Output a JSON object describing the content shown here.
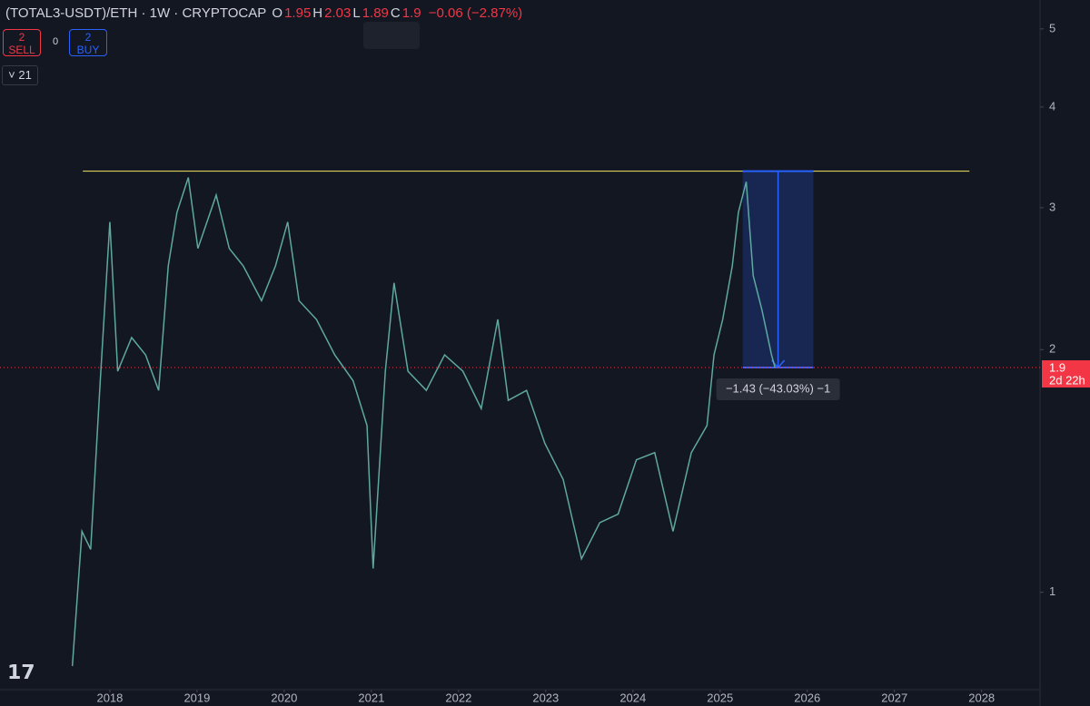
{
  "header": {
    "symbol": "(TOTAL3-USDT)/ETH · 1W · CRYPTOCAP",
    "ohlc": [
      {
        "key": "O",
        "value": "1.95"
      },
      {
        "key": "H",
        "value": "2.03"
      },
      {
        "key": "L",
        "value": "1.89"
      },
      {
        "key": "C",
        "value": "1.9"
      }
    ],
    "change": "−0.06 (−2.87%)"
  },
  "toolbar": {
    "sell_count": "2",
    "sell_label": "SELL",
    "spread": "0",
    "buy_count": "2",
    "buy_label": "BUY",
    "indicator": "21"
  },
  "chart_data": {
    "type": "line",
    "log_scale": true,
    "color": "#5fa8a0",
    "x": [
      2017.57,
      2017.68,
      2017.78,
      2017.89,
      2018.0,
      2018.09,
      2018.25,
      2018.41,
      2018.56,
      2018.67,
      2018.77,
      2018.9,
      2019.01,
      2019.22,
      2019.37,
      2019.53,
      2019.74,
      2019.9,
      2020.04,
      2020.17,
      2020.37,
      2020.58,
      2020.79,
      2020.95,
      2021.02,
      2021.16,
      2021.26,
      2021.42,
      2021.63,
      2021.84,
      2022.05,
      2022.26,
      2022.45,
      2022.57,
      2022.78,
      2022.99,
      2023.2,
      2023.41,
      2023.62,
      2023.83,
      2024.04,
      2024.25,
      2024.46,
      2024.67,
      2024.85,
      2024.93,
      2025.03,
      2025.14,
      2025.21,
      2025.3,
      2025.38,
      2025.48,
      2025.59,
      2025.63
    ],
    "values": [
      0.81,
      1.19,
      1.13,
      1.83,
      2.88,
      1.88,
      2.07,
      1.97,
      1.78,
      2.54,
      2.96,
      3.27,
      2.67,
      3.11,
      2.67,
      2.54,
      2.3,
      2.54,
      2.88,
      2.3,
      2.18,
      1.97,
      1.83,
      1.61,
      1.07,
      1.88,
      2.42,
      1.88,
      1.78,
      1.97,
      1.88,
      1.69,
      2.18,
      1.73,
      1.78,
      1.53,
      1.38,
      1.1,
      1.22,
      1.25,
      1.46,
      1.49,
      1.19,
      1.49,
      1.61,
      1.97,
      2.18,
      2.54,
      2.96,
      3.23,
      2.47,
      2.24,
      1.97,
      1.9
    ],
    "xlim": [
      2016.74,
      2028.67
    ],
    "ylim": [
      0.757,
      5.43
    ],
    "xticks": [
      2018,
      2019,
      2020,
      2021,
      2022,
      2023,
      2024,
      2025,
      2026,
      2027,
      2028
    ],
    "yticks": [
      1,
      2,
      3,
      4,
      5
    ],
    "resistance": {
      "y": 3.33,
      "x": [
        2017.69,
        2027.86
      ],
      "color": "#f5e663"
    },
    "measure": {
      "x": [
        2025.26,
        2026.07
      ],
      "y": [
        3.33,
        1.9
      ],
      "label": "−1.43 (−43.03%) −1",
      "color": "#2962ff"
    },
    "last_price": {
      "value": 1.9,
      "countdown": "2d 22h",
      "color": "#f23645"
    }
  }
}
